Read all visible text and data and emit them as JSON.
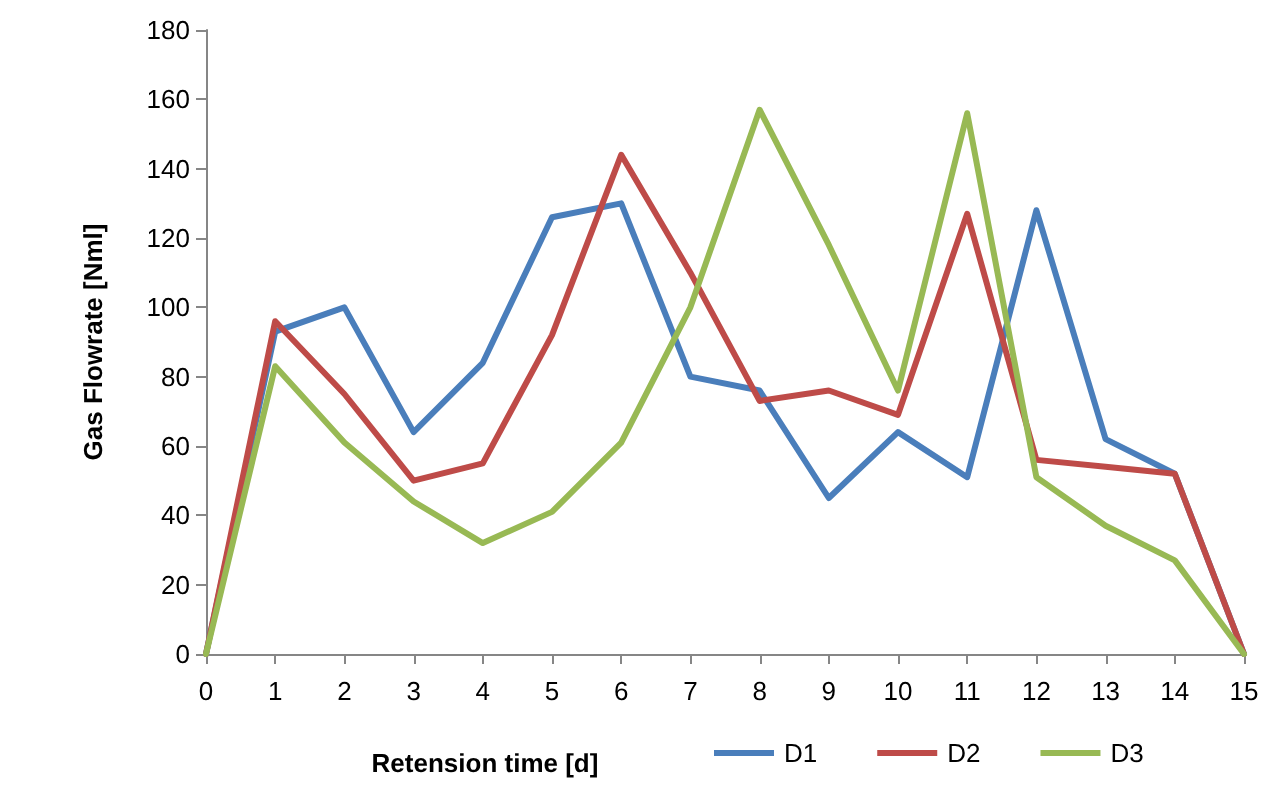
{
  "chart_data": {
    "type": "line",
    "xlabel": "Retension time [d]",
    "ylabel": "Gas Flowrate [Nml]",
    "x": [
      0,
      1,
      2,
      3,
      4,
      5,
      6,
      7,
      8,
      9,
      10,
      11,
      12,
      13,
      14,
      15
    ],
    "xlim": [
      0,
      15
    ],
    "xticks": [
      0,
      1,
      2,
      3,
      4,
      5,
      6,
      7,
      8,
      9,
      10,
      11,
      12,
      13,
      14,
      15
    ],
    "series": [
      {
        "name": "D1",
        "color": "#4a7ebb",
        "values": [
          0,
          93,
          100,
          64,
          84,
          126,
          130,
          80,
          76,
          45,
          64,
          51,
          128,
          62,
          52,
          0
        ]
      },
      {
        "name": "D2",
        "color": "#be4b48",
        "values": [
          0,
          96,
          75,
          50,
          55,
          92,
          144,
          110,
          73,
          76,
          69,
          127,
          56,
          54,
          52,
          0
        ]
      },
      {
        "name": "D3",
        "color": "#98b954",
        "values": [
          0,
          83,
          61,
          44,
          32,
          41,
          61,
          100,
          157,
          118,
          76,
          156,
          51,
          37,
          27,
          0
        ]
      }
    ],
    "ylim": [
      0,
      180
    ],
    "yticks": [
      0,
      20,
      40,
      60,
      80,
      100,
      120,
      140,
      160,
      180
    ],
    "grid": false,
    "legend": "bottom",
    "marker": "none",
    "line_style": "solid"
  }
}
